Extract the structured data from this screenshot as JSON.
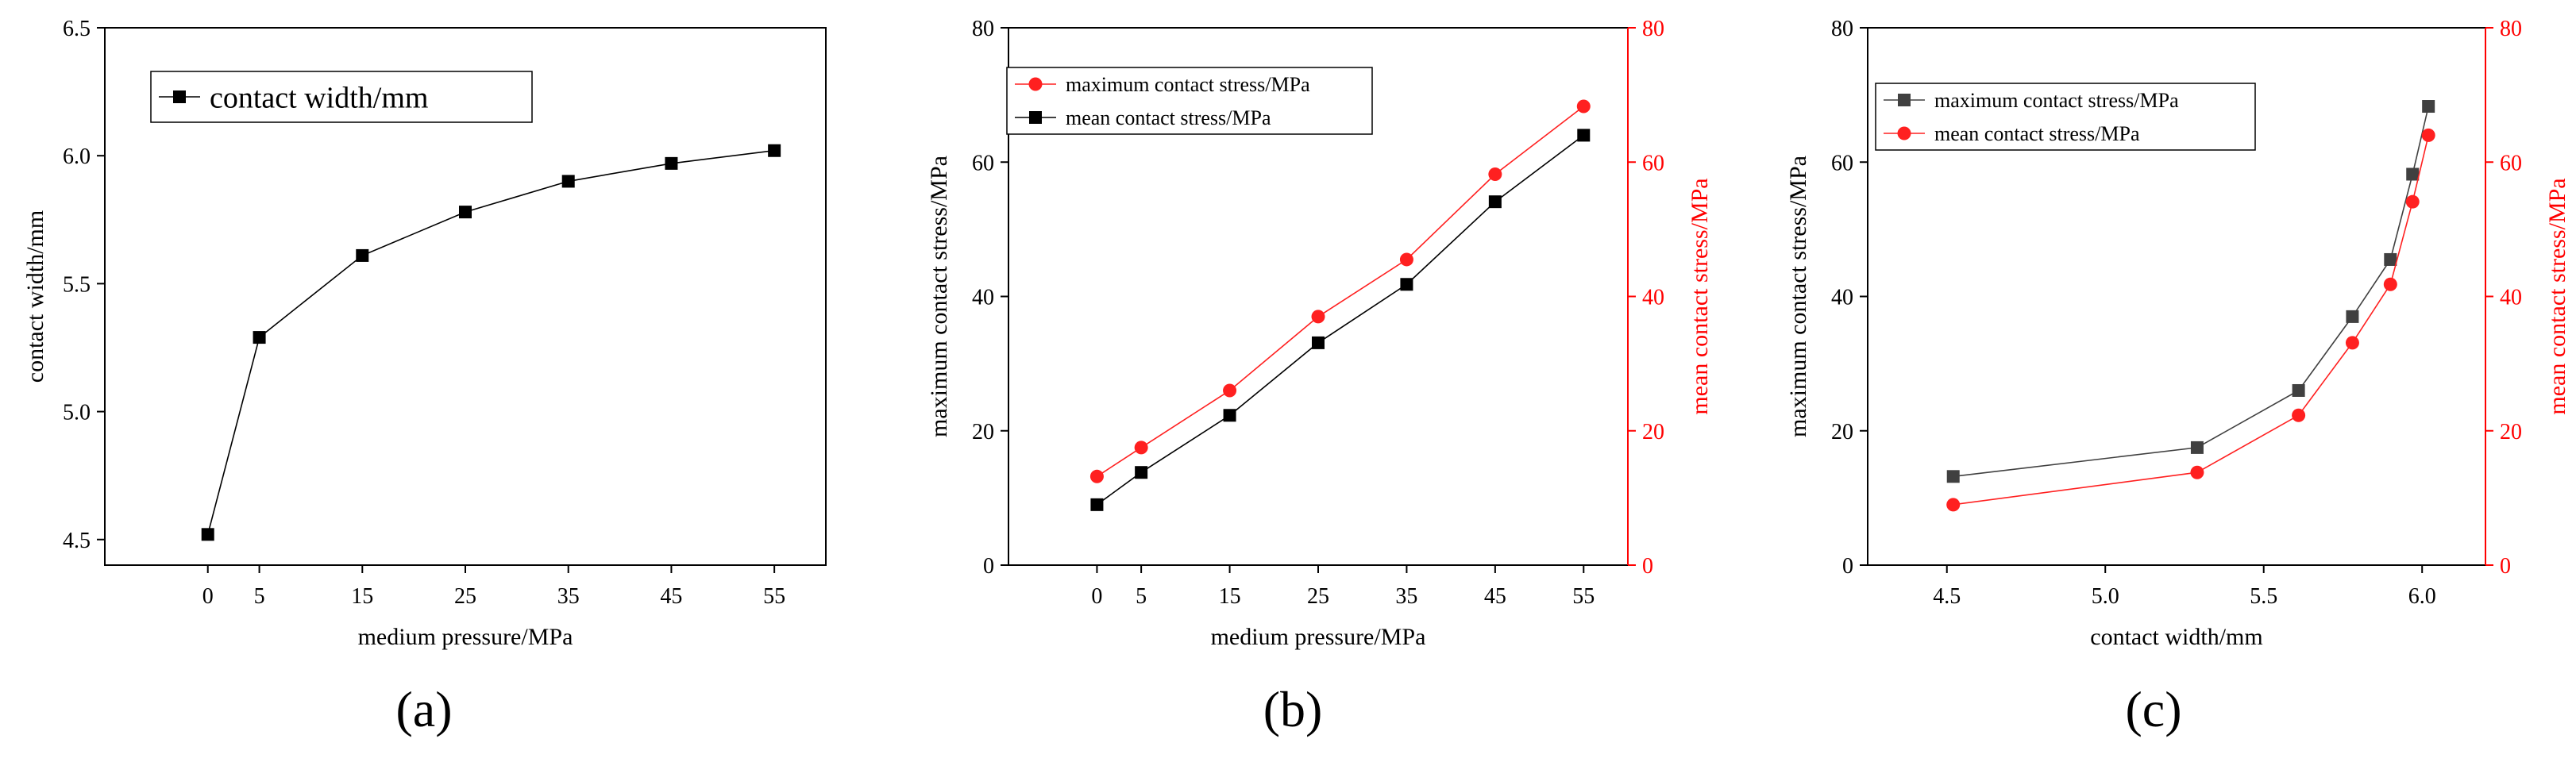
{
  "figure": {
    "panel_labels": [
      "(a)",
      "(b)",
      "(c)"
    ]
  },
  "colors": {
    "black_series": "#000000",
    "gray_series": "#404040",
    "red_series": "#ff2020",
    "red_axis": "#ff0000",
    "axis": "#000000"
  },
  "chart_data": [
    {
      "id": "a",
      "type": "line",
      "title": "",
      "panel_label": "(a)",
      "xlabel": "medium pressure/MPa",
      "ylabel": "contact width/mm",
      "xlim": [
        -10,
        60
      ],
      "ylim": [
        4.4,
        6.5
      ],
      "xticks": [
        0,
        5,
        15,
        25,
        35,
        45,
        55
      ],
      "xtick_labels": [
        "0",
        "5",
        "15",
        "25",
        "35",
        "45",
        "55"
      ],
      "yticks": [
        4.5,
        5.0,
        5.5,
        6.0,
        6.5
      ],
      "ytick_labels": [
        "4.5",
        "5.0",
        "5.5",
        "6.0",
        "6.5"
      ],
      "legend_position": "top-left",
      "series": [
        {
          "name": "contact width/mm",
          "marker": "square",
          "color": "#000000",
          "x": [
            0,
            5,
            15,
            25,
            35,
            45,
            55
          ],
          "y": [
            4.52,
            5.29,
            5.61,
            5.78,
            5.9,
            5.97,
            6.02
          ]
        }
      ]
    },
    {
      "id": "b",
      "type": "line",
      "title": "",
      "panel_label": "(b)",
      "xlabel": "medium pressure/MPa",
      "ylabel": "maximum contact stress/MPa",
      "ylabel_right": "mean contact stress/MPa",
      "xlim": [
        -10,
        60
      ],
      "ylim": [
        0,
        80
      ],
      "ylim_right": [
        0,
        80
      ],
      "xticks": [
        0,
        5,
        15,
        25,
        35,
        45,
        55
      ],
      "xtick_labels": [
        "0",
        "5",
        "15",
        "25",
        "35",
        "45",
        "55"
      ],
      "yticks": [
        0,
        20,
        40,
        60,
        80
      ],
      "ytick_labels": [
        "0",
        "20",
        "40",
        "60",
        "80"
      ],
      "yticks_right": [
        0,
        20,
        40,
        60,
        80
      ],
      "ytick_labels_right": [
        "0",
        "20",
        "40",
        "60",
        "80"
      ],
      "legend_position": "top-left",
      "series": [
        {
          "name": "maximum contact stress/MPa",
          "marker": "circle",
          "color": "#ff2020",
          "axis": "left",
          "x": [
            0,
            5,
            15,
            25,
            35,
            45,
            55
          ],
          "y": [
            13.2,
            17.5,
            26.0,
            37.0,
            45.5,
            58.2,
            68.3
          ]
        },
        {
          "name": "mean contact stress/MPa",
          "marker": "square",
          "color": "#000000",
          "axis": "left",
          "x": [
            0,
            5,
            15,
            25,
            35,
            45,
            55
          ],
          "y": [
            9.0,
            13.8,
            22.3,
            33.1,
            41.8,
            54.1,
            64.0
          ]
        }
      ]
    },
    {
      "id": "c",
      "type": "line",
      "title": "",
      "panel_label": "(c)",
      "xlabel": "contact width/mm",
      "ylabel": "maximum contact stress/MPa",
      "ylabel_right": "mean contact stress/MPa",
      "xlim": [
        4.25,
        6.2
      ],
      "ylim": [
        0,
        80
      ],
      "ylim_right": [
        0,
        80
      ],
      "xticks": [
        4.5,
        5.0,
        5.5,
        6.0
      ],
      "xtick_labels": [
        "4.5",
        "5.0",
        "5.5",
        "6.0"
      ],
      "yticks": [
        0,
        20,
        40,
        60,
        80
      ],
      "ytick_labels": [
        "0",
        "20",
        "40",
        "60",
        "80"
      ],
      "yticks_right": [
        0,
        20,
        40,
        60,
        80
      ],
      "ytick_labels_right": [
        "0",
        "20",
        "40",
        "60",
        "80"
      ],
      "legend_position": "top-left",
      "series": [
        {
          "name": "maximum contact stress/MPa",
          "marker": "square",
          "color": "#404040",
          "axis": "left",
          "x": [
            4.52,
            5.29,
            5.61,
            5.78,
            5.9,
            5.97,
            6.02
          ],
          "y": [
            13.2,
            17.5,
            26.0,
            37.0,
            45.5,
            58.2,
            68.3
          ]
        },
        {
          "name": "mean contact stress/MPa",
          "marker": "circle",
          "color": "#ff2020",
          "axis": "right",
          "x": [
            4.52,
            5.29,
            5.61,
            5.78,
            5.9,
            5.97,
            6.02
          ],
          "y": [
            9.0,
            13.8,
            22.3,
            33.1,
            41.8,
            54.1,
            64.0
          ]
        }
      ]
    }
  ]
}
